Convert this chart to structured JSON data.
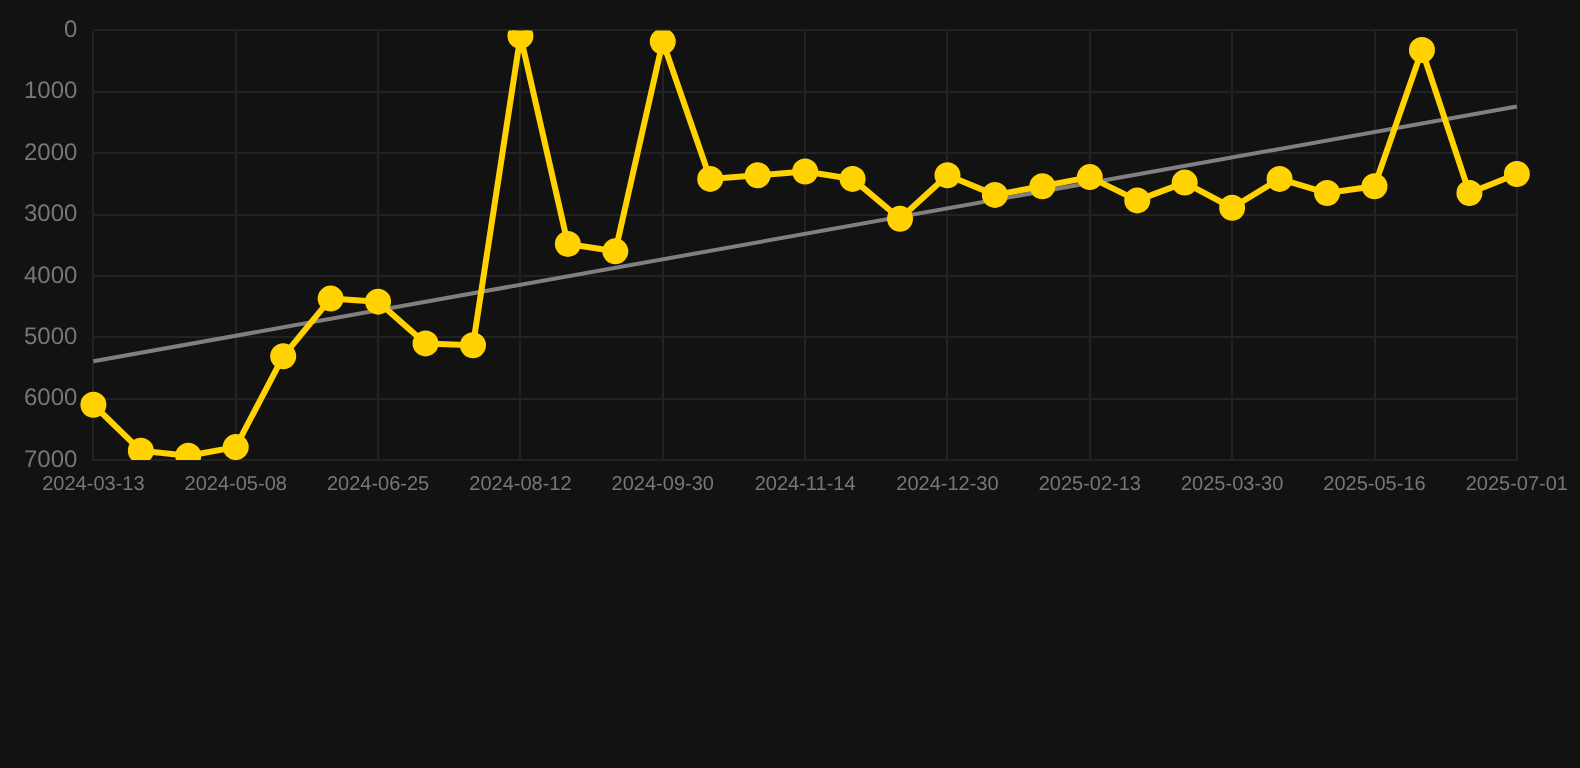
{
  "chart_data": {
    "type": "line",
    "categories": [
      "2024-03-13",
      null,
      null,
      "2024-05-08",
      null,
      null,
      "2024-06-25",
      null,
      null,
      "2024-08-12",
      null,
      null,
      "2024-09-30",
      null,
      null,
      "2024-11-14",
      null,
      null,
      "2024-12-30",
      null,
      null,
      "2025-02-13",
      null,
      null,
      "2025-03-30",
      null,
      null,
      "2025-05-16",
      null,
      null,
      "2025-07-01"
    ],
    "series": [
      {
        "color": "#ffd200",
        "marker": "circle",
        "values": [
          6100,
          6850,
          6930,
          6790,
          5310,
          4370,
          4420,
          5100,
          5130,
          90,
          3480,
          3600,
          180,
          2420,
          2360,
          2300,
          2420,
          3070,
          2360,
          2680,
          2540,
          2390,
          2770,
          2480,
          2890,
          2420,
          2650,
          2540,
          320,
          2650,
          2340
        ]
      },
      {
        "type": "line",
        "color": "#808080",
        "marker": "none",
        "values": [
          5390,
          null,
          null,
          null,
          null,
          null,
          null,
          null,
          null,
          null,
          null,
          null,
          null,
          null,
          null,
          null,
          null,
          null,
          null,
          null,
          null,
          null,
          null,
          null,
          null,
          null,
          null,
          null,
          null,
          null,
          1240
        ]
      }
    ],
    "ylim": [
      7000,
      0
    ],
    "yticks": [
      0,
      1000,
      2000,
      3000,
      4000,
      5000,
      6000,
      7000
    ],
    "grid": true,
    "legend": false
  }
}
